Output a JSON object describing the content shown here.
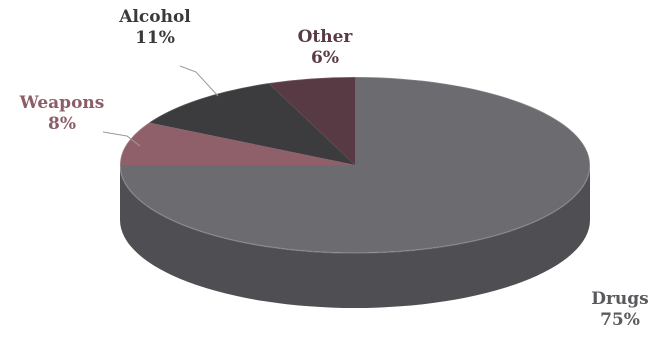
{
  "chart_data": {
    "type": "pie",
    "title": "",
    "style": "3d",
    "legend": "none",
    "slices": [
      {
        "label": "Drugs",
        "value": 75,
        "value_label": "75%",
        "color": "#6c6b70",
        "side_color": "#4f4e52",
        "label_color": "#5a5a5e"
      },
      {
        "label": "Weapons",
        "value": 8,
        "value_label": "8%",
        "color": "#8f6069",
        "side_color": "#6e4a52",
        "label_color": "#8d5d67"
      },
      {
        "label": "Alcohol",
        "value": 11,
        "value_label": "11%",
        "color": "#3c3c3e",
        "side_color": "#2a2a2c",
        "label_color": "#3a3a3c"
      },
      {
        "label": "Other",
        "value": 6,
        "value_label": "6%",
        "color": "#573a44",
        "side_color": "#3f2a32",
        "label_color": "#5a3a46"
      }
    ]
  }
}
